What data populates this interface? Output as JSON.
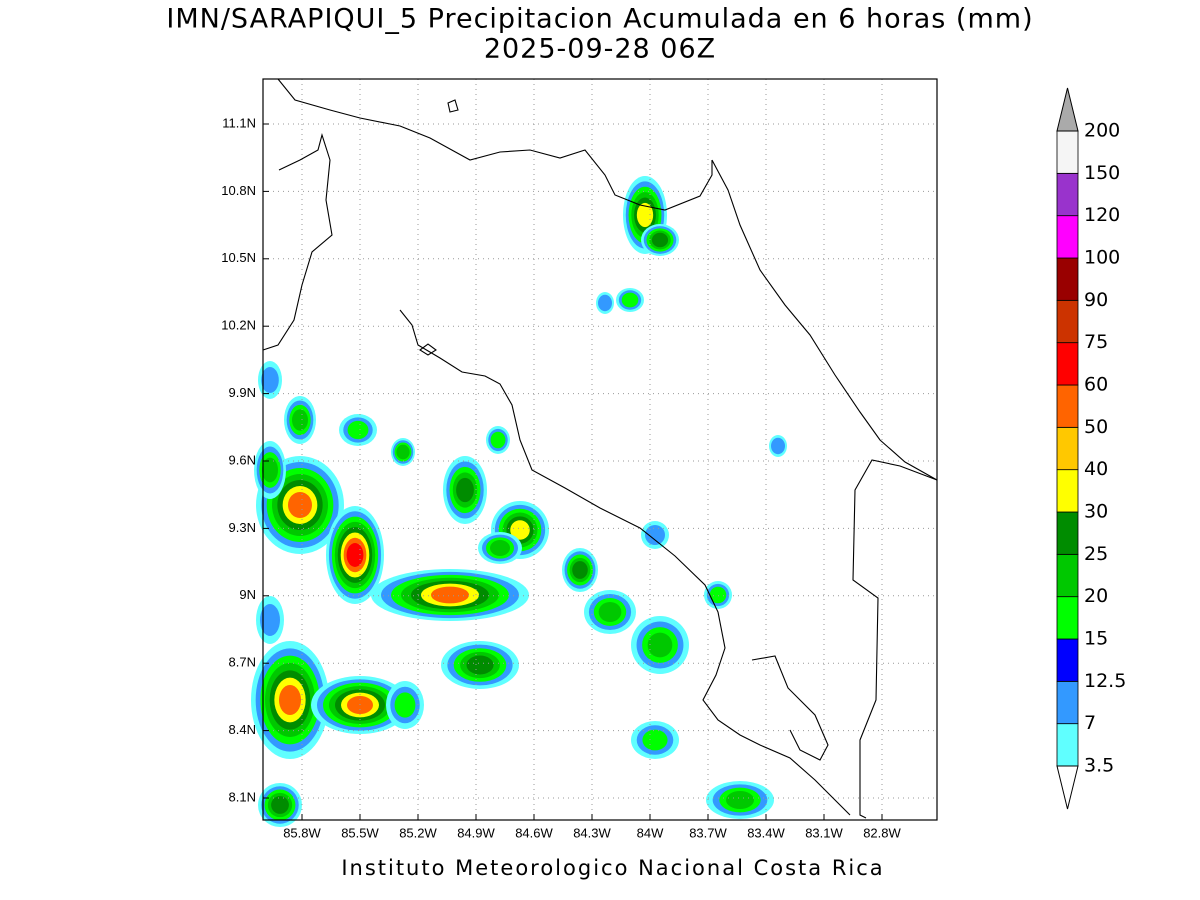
{
  "title": "IMN/SARAPIQUI_5 Precipitacion Acumulada en 6 horas (mm)",
  "subtitle": "2025-09-28 06Z",
  "lon_labels": [
    "85.8W",
    "85.5W",
    "85.2W",
    "84.9W",
    "84.6W",
    "84.3W",
    "84W",
    "83.7W",
    "83.4W",
    "83.1W",
    "82.8W"
  ],
  "lat_labels": [
    "11.1N",
    "10.8N",
    "10.5N",
    "10.2N",
    "9.9N",
    "9.6N",
    "9.3N",
    "9N",
    "8.7N",
    "8.4N",
    "8.1N"
  ],
  "colorbar": {
    "labels": [
      "3.5",
      "7",
      "12.5",
      "15",
      "20",
      "25",
      "30",
      "40",
      "50",
      "60",
      "75",
      "90",
      "100",
      "120",
      "150",
      "200"
    ],
    "colors": [
      "#60ffff",
      "#3399ff",
      "#0000ff",
      "#00ff00",
      "#00c800",
      "#008c00",
      "#ffff00",
      "#ffc800",
      "#ff6400",
      "#ff0000",
      "#cc3300",
      "#990000",
      "#ff00ff",
      "#9933cc",
      "#f5f5f5"
    ],
    "under_color": "#ffffff",
    "over_color": "#aaaaaa"
  },
  "footer": "Instituto Meteorologico Nacional Costa Rica"
}
